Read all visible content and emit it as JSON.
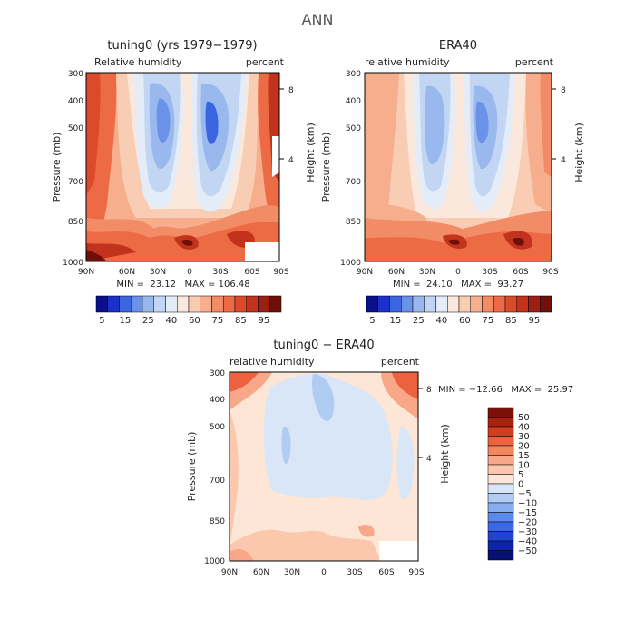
{
  "figure": {
    "main_title": "ANN"
  },
  "chart_data": [
    {
      "type": "heatmap",
      "title": "tuning0 (yrs 1979−1979)",
      "subtitle_left": "Relative humidity",
      "subtitle_right": "percent",
      "xlabel": "",
      "ylabel": "Pressure (mb)",
      "y2label": "Height (km)",
      "x_ticks": [
        "90N",
        "60N",
        "30N",
        "0",
        "30S",
        "60S",
        "90S"
      ],
      "y_ticks": [
        "300",
        "400",
        "500",
        "700",
        "850",
        "1000"
      ],
      "y2_ticks": [
        "8",
        "4"
      ],
      "ylim": [
        1000,
        300
      ],
      "xlim": [
        90,
        -90
      ],
      "stats": "MIN =  23.12   MAX = 106.48",
      "colorbar": {
        "orientation": "horizontal",
        "labels": [
          "5",
          "15",
          "25",
          "40",
          "60",
          "75",
          "85",
          "95"
        ],
        "levels": [
          5,
          10,
          15,
          20,
          25,
          30,
          40,
          50,
          60,
          65,
          70,
          75,
          80,
          85,
          90,
          95
        ],
        "colors": [
          "#08108c",
          "#1a30c8",
          "#3a64e0",
          "#6a92e8",
          "#98b8ee",
          "#c2d6f4",
          "#e4ecf8",
          "#fbe8dc",
          "#f8cdb4",
          "#f6ae8c",
          "#f28c66",
          "#ec6a44",
          "#dc4a2a",
          "#c2321c",
          "#9c2012",
          "#6e1008"
        ]
      }
    },
    {
      "type": "heatmap",
      "title": "ERA40",
      "subtitle_left": "relative humidity",
      "subtitle_right": "percent",
      "xlabel": "",
      "ylabel": "Pressure (mb)",
      "y2label": "Height (km)",
      "x_ticks": [
        "90N",
        "60N",
        "30N",
        "0",
        "30S",
        "60S",
        "90S"
      ],
      "y_ticks": [
        "300",
        "400",
        "500",
        "700",
        "850",
        "1000"
      ],
      "y2_ticks": [
        "8",
        "4"
      ],
      "ylim": [
        1000,
        300
      ],
      "xlim": [
        90,
        -90
      ],
      "stats": "MIN =  24.10   MAX =  93.27",
      "colorbar": {
        "orientation": "horizontal",
        "labels": [
          "5",
          "15",
          "25",
          "40",
          "60",
          "75",
          "85",
          "95"
        ],
        "levels": [
          5,
          10,
          15,
          20,
          25,
          30,
          40,
          50,
          60,
          65,
          70,
          75,
          80,
          85,
          90,
          95
        ],
        "colors": [
          "#08108c",
          "#1a30c8",
          "#3a64e0",
          "#6a92e8",
          "#98b8ee",
          "#c2d6f4",
          "#e4ecf8",
          "#fbe8dc",
          "#f8cdb4",
          "#f6ae8c",
          "#f28c66",
          "#ec6a44",
          "#dc4a2a",
          "#c2321c",
          "#9c2012",
          "#6e1008"
        ]
      }
    },
    {
      "type": "heatmap",
      "title": "tuning0 − ERA40",
      "subtitle_left": "relative humidity",
      "subtitle_right": "percent",
      "xlabel": "",
      "ylabel": "Pressure (mb)",
      "y2label": "Height (km)",
      "x_ticks": [
        "90N",
        "60N",
        "30N",
        "0",
        "30S",
        "60S",
        "90S"
      ],
      "y_ticks": [
        "300",
        "400",
        "500",
        "700",
        "850",
        "1000"
      ],
      "y2_ticks": [
        "8",
        "4"
      ],
      "ylim": [
        1000,
        300
      ],
      "xlim": [
        90,
        -90
      ],
      "stats": "MIN = −12.66   MAX =  25.97",
      "colorbar": {
        "orientation": "vertical",
        "labels": [
          "50",
          "40",
          "30",
          "20",
          "15",
          "10",
          "5",
          "0",
          "−5",
          "−10",
          "−15",
          "−20",
          "−30",
          "−40",
          "−50"
        ],
        "colors": [
          "#7a1008",
          "#a8200e",
          "#d23c20",
          "#ec6240",
          "#f4865e",
          "#f8a888",
          "#fbc8ae",
          "#fde6d6",
          "#d8e6f8",
          "#b0ccf2",
          "#88aef0",
          "#5a8aec",
          "#3a68e6",
          "#1e44d0",
          "#0c24a8",
          "#061072"
        ]
      }
    }
  ]
}
